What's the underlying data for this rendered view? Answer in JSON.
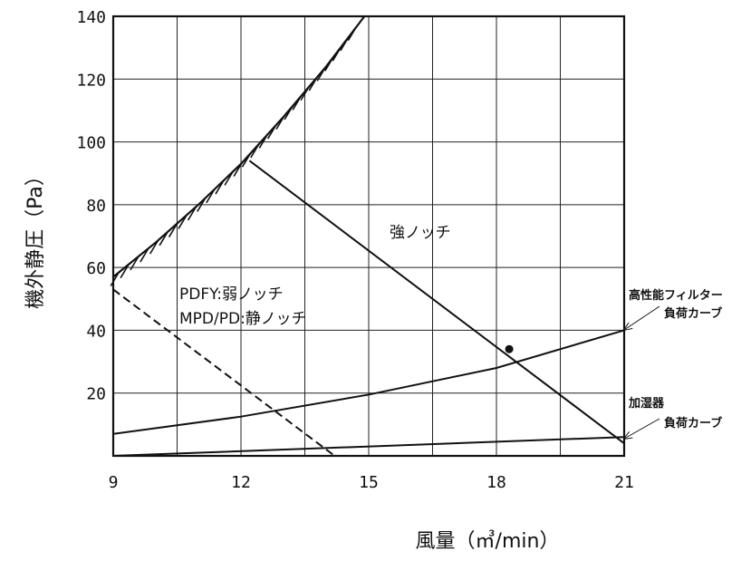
{
  "chart_data": {
    "type": "line",
    "xlabel": "風量（㎥/min）",
    "ylabel": "機外静圧（Pa）",
    "xlim": [
      9,
      21
    ],
    "ylim": [
      0,
      140
    ],
    "x_ticks": [
      "9",
      "12",
      "15",
      "18",
      "21"
    ],
    "y_ticks": [
      "20",
      "40",
      "60",
      "80",
      "100",
      "120",
      "140"
    ],
    "grid": true,
    "limit_curve": {
      "x": [
        9.0,
        10.0,
        11.0,
        12.0,
        13.0,
        14.0,
        14.9
      ],
      "y": [
        57,
        68,
        80,
        93,
        108,
        124,
        140
      ]
    },
    "series": [
      {
        "style": "solid",
        "x": [
          12.2,
          21.0
        ],
        "y": [
          94,
          4
        ]
      },
      {
        "style": "dashed",
        "x": [
          9.0,
          14.2
        ],
        "y": [
          53,
          0
        ]
      },
      {
        "style": "solid",
        "x": [
          9.0,
          12.0,
          15.0,
          18.0,
          21.0
        ],
        "y": [
          7,
          12.5,
          19.5,
          28,
          40
        ]
      },
      {
        "style": "solid",
        "x": [
          9.0,
          21.0
        ],
        "y": [
          0,
          6
        ]
      }
    ],
    "operating_point": {
      "x": 18.3,
      "y": 34
    },
    "annotations": {
      "strong_notch": "強ノッチ",
      "weak_notch": "PDFY:弱ノッチ",
      "quiet_notch": "MPD/PD:静ノッチ",
      "filter_curve_line1": "高性能フィルター",
      "filter_curve_line2": "負荷カーブ",
      "humidifier_line1": "加湿器",
      "humidifier_line2": "負荷カーブ"
    }
  }
}
